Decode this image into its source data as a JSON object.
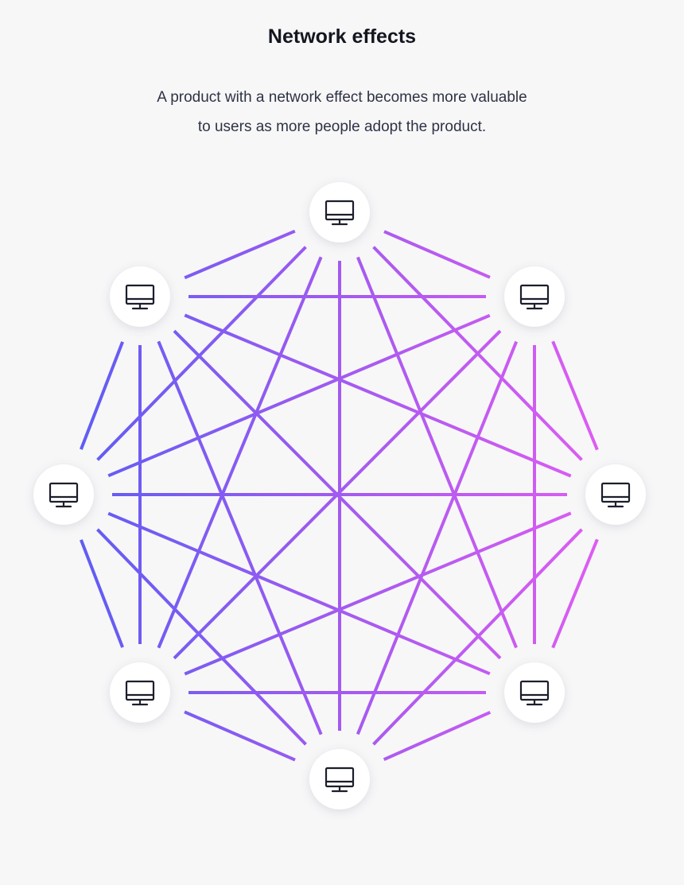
{
  "header": {
    "title": "Network effects",
    "subtitle_lines": [
      "A product with a network effect becomes more valuable",
      "to users as more people adopt the product."
    ]
  },
  "diagram": {
    "node_icon": "desktop-monitor-icon",
    "node_count": 8,
    "colors": {
      "background": "#f7f7f8",
      "node_fill": "#ffffff",
      "icon_stroke": "#1b1e2b",
      "edge_left": "#5b5df4",
      "edge_mid": "#a35af0",
      "edge_right": "#e25cf2"
    },
    "nodes": [
      {
        "id": "top",
        "label": ""
      },
      {
        "id": "upper-right",
        "label": ""
      },
      {
        "id": "right",
        "label": ""
      },
      {
        "id": "lower-right",
        "label": ""
      },
      {
        "id": "bottom",
        "label": ""
      },
      {
        "id": "lower-left",
        "label": ""
      },
      {
        "id": "left",
        "label": ""
      },
      {
        "id": "upper-left",
        "label": ""
      }
    ],
    "connections": "every node connected to every other node"
  }
}
